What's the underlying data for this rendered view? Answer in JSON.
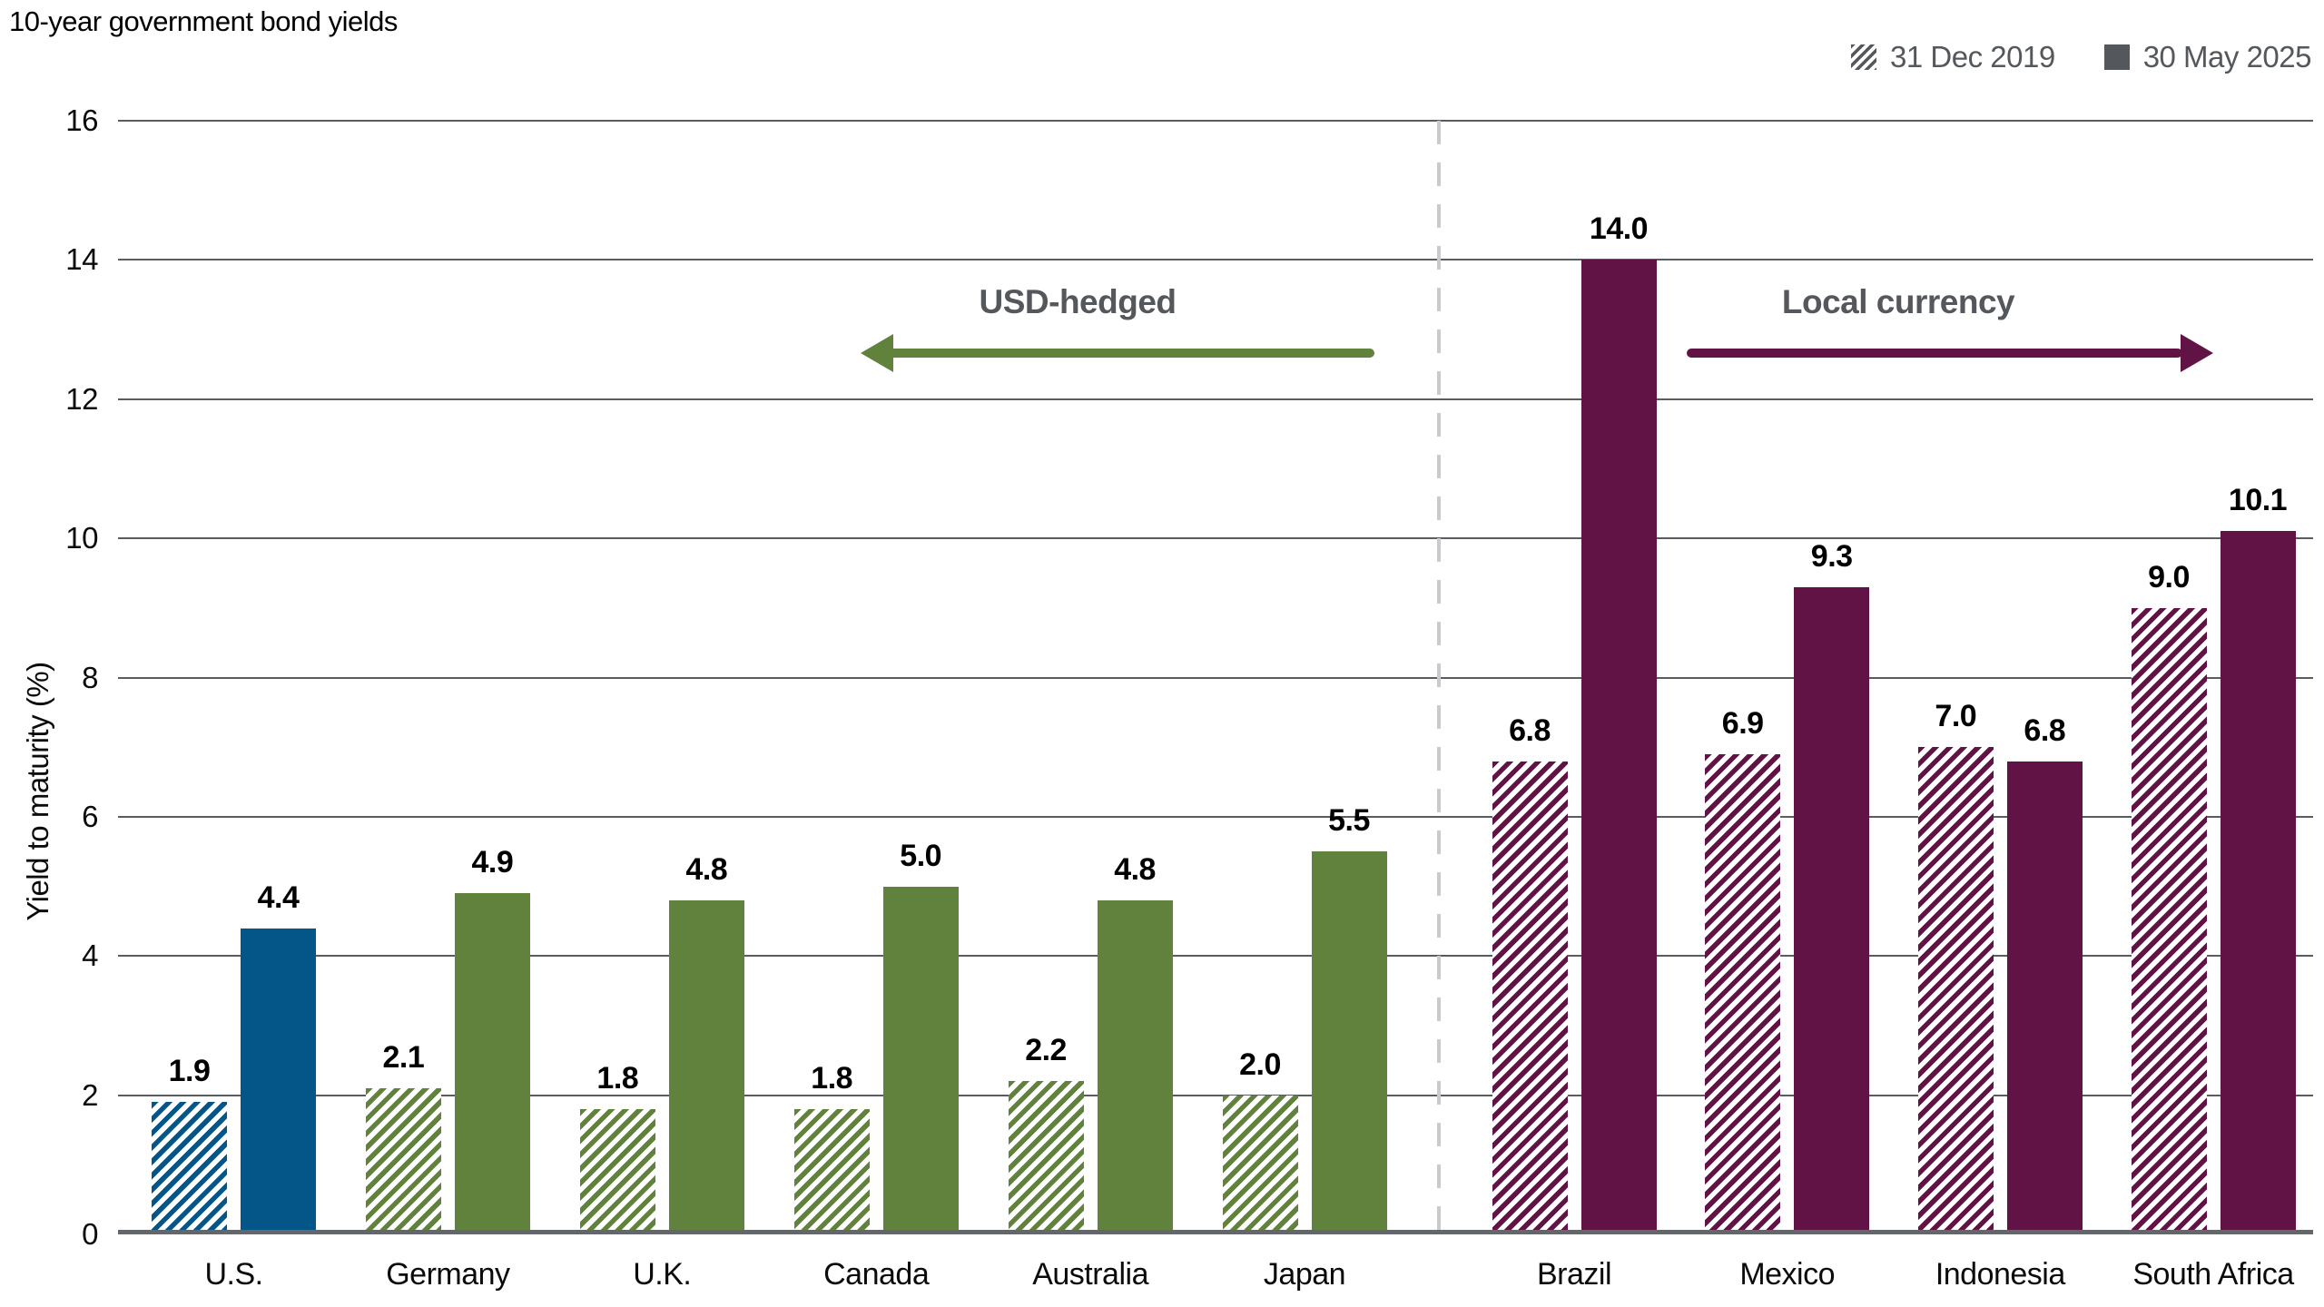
{
  "title": "10-year government bond yields",
  "legend": {
    "items": [
      {
        "label": "31 Dec 2019",
        "swatch": "hatched"
      },
      {
        "label": "30 May 2025",
        "swatch": "solid"
      }
    ]
  },
  "y_axis": {
    "label": "Yield to maturity (%)",
    "ticks": [
      0,
      2,
      4,
      6,
      8,
      10,
      12,
      14,
      16
    ],
    "max": 16
  },
  "annotations": {
    "usd_hedged": {
      "label": "USD-hedged",
      "arrow_direction": "left",
      "arrow_color": "#60823d"
    },
    "local_currency": {
      "label": "Local currency",
      "arrow_direction": "right",
      "arrow_color": "#611345"
    }
  },
  "colors": {
    "us_blue": "#045689",
    "developed_green": "#60823d",
    "emerging_maroon": "#611345",
    "legend_gray": "#54575b",
    "annotation_text_gray": "#54575b",
    "gridline_gray": "#595d61",
    "baseline_gray": "#63666a",
    "divider_light_gray": "#c9cacb",
    "label_black": "#000000"
  },
  "chart_data": {
    "type": "bar",
    "title": "10-year government bond yields",
    "xlabel": "",
    "ylabel": "Yield to maturity (%)",
    "ylim": [
      0,
      16
    ],
    "ytick_step": 2,
    "grid": true,
    "legend_position": "top-right",
    "categories": [
      "U.S.",
      "Germany",
      "U.K.",
      "Canada",
      "Australia",
      "Japan",
      "Brazil",
      "Mexico",
      "Indonesia",
      "South Africa"
    ],
    "series": [
      {
        "name": "31 Dec 2019",
        "style": "hatched",
        "values": [
          1.9,
          2.1,
          1.8,
          1.8,
          2.2,
          2.0,
          6.8,
          6.9,
          7.0,
          9.0
        ]
      },
      {
        "name": "30 May 2025",
        "style": "solid",
        "values": [
          4.4,
          4.9,
          4.8,
          5.0,
          4.8,
          5.5,
          14.0,
          9.3,
          6.8,
          10.1
        ]
      }
    ],
    "group_colors": [
      "#045689",
      "#60823d",
      "#60823d",
      "#60823d",
      "#60823d",
      "#60823d",
      "#611345",
      "#611345",
      "#611345",
      "#611345"
    ],
    "sections": [
      {
        "label": "USD-hedged",
        "categories": [
          "U.S.",
          "Germany",
          "U.K.",
          "Canada",
          "Australia",
          "Japan"
        ]
      },
      {
        "label": "Local currency",
        "categories": [
          "Brazil",
          "Mexico",
          "Indonesia",
          "South Africa"
        ]
      }
    ],
    "divider_between": [
      "Japan",
      "Brazil"
    ]
  }
}
